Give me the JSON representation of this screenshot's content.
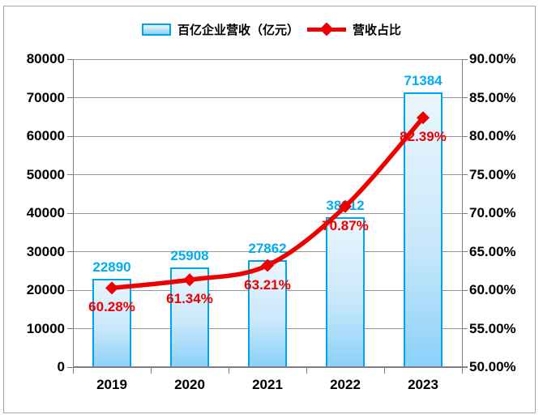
{
  "legend": {
    "bar_series_label": "百亿企业营收（亿元）",
    "line_series_label": "营收占比"
  },
  "colors": {
    "bar_fill_top": "#eaf6fd",
    "bar_fill_bottom": "#8bd1f9",
    "bar_border": "#00a3e8",
    "bar_label": "#00aeef",
    "line": "#ee0000",
    "gridline": "#969696",
    "axis": "#7f7f7f",
    "text": "#000000"
  },
  "chart_data": {
    "type": "bar",
    "subtype": "combo-bar-line",
    "title": "",
    "categories": [
      "2019",
      "2020",
      "2021",
      "2022",
      "2023"
    ],
    "series": [
      {
        "name": "百亿企业营收（亿元）",
        "type": "bar",
        "axis": "left",
        "values": [
          22890,
          25908,
          27862,
          38912,
          71384
        ],
        "labels": [
          "22890",
          "25908",
          "27862",
          "38912",
          "71384"
        ]
      },
      {
        "name": "营收占比",
        "type": "line",
        "axis": "right",
        "smoothed": true,
        "marker": "diamond",
        "values": [
          60.28,
          61.34,
          63.21,
          70.87,
          82.39
        ],
        "labels": [
          "60.28%",
          "61.34%",
          "63.21%",
          "70.87%",
          "82.39%"
        ]
      }
    ],
    "left_axis": {
      "min": 0,
      "max": 80000,
      "step": 10000,
      "ticks": [
        "0",
        "10000",
        "20000",
        "30000",
        "40000",
        "50000",
        "60000",
        "70000",
        "80000"
      ]
    },
    "right_axis": {
      "min": 50,
      "max": 90,
      "step": 5,
      "ticks": [
        "50.00%",
        "55.00%",
        "60.00%",
        "65.00%",
        "70.00%",
        "75.00%",
        "80.00%",
        "85.00%",
        "90.00%"
      ]
    },
    "grid": "horizontal",
    "legend_position": "top"
  }
}
